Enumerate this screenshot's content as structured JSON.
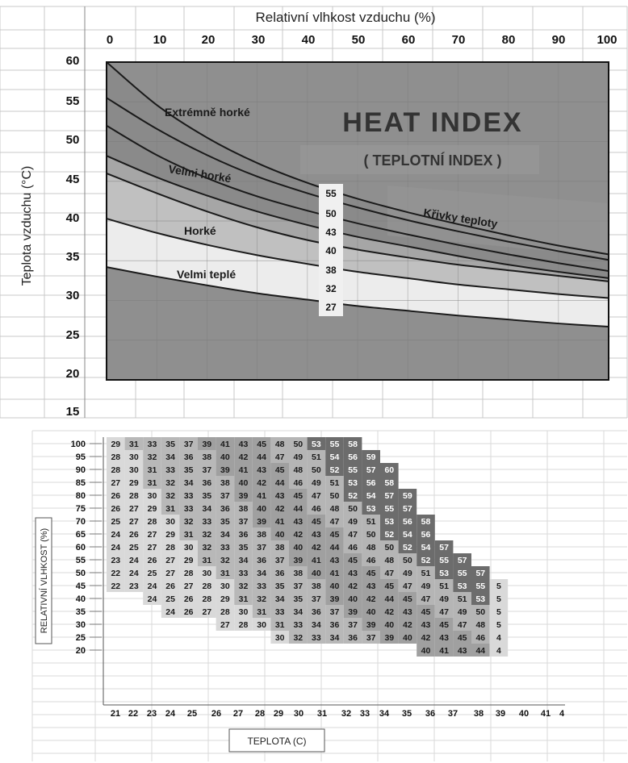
{
  "chart_data": [
    {
      "type": "line",
      "title": "HEAT INDEX",
      "subtitle": "( TEPLOTNÍ INDEX )",
      "xlabel": "Relativní vlhkost vzduchu (%)",
      "ylabel": "Teplota vzduchu (°C)",
      "x_ticks": [
        0,
        10,
        20,
        30,
        40,
        50,
        60,
        70,
        80,
        90,
        100
      ],
      "y_ticks": [
        60,
        55,
        50,
        45,
        40,
        35,
        30,
        25,
        20,
        15
      ],
      "xlim": [
        0,
        100
      ],
      "ylim": [
        15,
        60
      ],
      "curves_label": "Křivky teploty",
      "curve_value_labels": [
        "55",
        "50",
        "43",
        "40",
        "38",
        "32",
        "27"
      ],
      "x": [
        0,
        10,
        20,
        30,
        40,
        50,
        60,
        70,
        80,
        90,
        100
      ],
      "series": [
        {
          "name": "55",
          "values": [
            60,
            54.6,
            50.5,
            47.3,
            44.8,
            42.8,
            41.1,
            39.6,
            38.2,
            36.9,
            35.8
          ]
        },
        {
          "name": "50",
          "values": [
            55.5,
            51.6,
            48.3,
            45.6,
            43.5,
            41.7,
            40.1,
            38.7,
            37.4,
            36.2,
            35.1
          ]
        },
        {
          "name": "43",
          "values": [
            52,
            48.3,
            45.4,
            43.1,
            41.3,
            39.7,
            38.3,
            37,
            35.8,
            34.7,
            33.7
          ]
        },
        {
          "name": "40",
          "values": [
            48.2,
            45.5,
            43.2,
            41.2,
            39.5,
            38,
            36.8,
            35.6,
            34.5,
            33.6,
            32.8
          ]
        },
        {
          "name": "38",
          "values": [
            46,
            43.5,
            41.2,
            39.2,
            37.6,
            36.4,
            35.4,
            34.5,
            33.8,
            33.1,
            32.4
          ]
        },
        {
          "name": "32",
          "values": [
            40.3,
            38.5,
            37,
            35.7,
            34.6,
            33.6,
            32.8,
            32,
            31.4,
            30.8,
            30.3
          ]
        },
        {
          "name": "27",
          "values": [
            34.2,
            33,
            31.9,
            30.9,
            30.1,
            29.3,
            28.7,
            28.1,
            27.6,
            27.1,
            26.7
          ]
        }
      ],
      "zones": [
        {
          "name": "Extrémně horké",
          "color": "#8a8a8a"
        },
        {
          "name": "Velmi horké",
          "color": "#a6a6a6"
        },
        {
          "name": "Horké",
          "color": "#c0c0c0"
        },
        {
          "name": "Velmi teplé",
          "color": "#ececec"
        }
      ],
      "colors": {
        "outside": "#8f8f8f",
        "big_title": "#333333",
        "curve": "#1a1a1a"
      }
    },
    {
      "type": "heatmap",
      "xlabel": "TEPLOTA (C)",
      "ylabel": "RELATIVNÍ VLHKOST (%)",
      "x_ticks": [
        "21",
        "22",
        "23",
        "24",
        "25",
        "26",
        "27",
        "28",
        "29",
        "30",
        "31",
        "32",
        "33",
        "34",
        "35",
        "36",
        "37",
        "38",
        "39",
        "40",
        "41",
        "4"
      ],
      "y_ticks": [
        "100",
        "95",
        "90",
        "85",
        "80",
        "75",
        "70",
        "65",
        "60",
        "55",
        "50",
        "45",
        "40",
        "35",
        "30",
        "25",
        "20"
      ],
      "rows": [
        {
          "rh": "100",
          "start": 21,
          "values": [
            "29",
            "31",
            "33",
            "35",
            "37",
            "39",
            "41",
            "43",
            "45",
            "48",
            "50",
            "53",
            "55",
            "58"
          ]
        },
        {
          "rh": "95",
          "start": 21,
          "values": [
            "28",
            "30",
            "32",
            "34",
            "36",
            "38",
            "40",
            "42",
            "44",
            "47",
            "49",
            "51",
            "54",
            "56",
            "59"
          ]
        },
        {
          "rh": "90",
          "start": 21,
          "values": [
            "28",
            "30",
            "31",
            "33",
            "35",
            "37",
            "39",
            "41",
            "43",
            "45",
            "48",
            "50",
            "52",
            "55",
            "57",
            "60"
          ]
        },
        {
          "rh": "85",
          "start": 21,
          "values": [
            "27",
            "29",
            "31",
            "32",
            "34",
            "36",
            "38",
            "40",
            "42",
            "44",
            "46",
            "49",
            "51",
            "53",
            "56",
            "58"
          ]
        },
        {
          "rh": "80",
          "start": 21,
          "values": [
            "26",
            "28",
            "30",
            "32",
            "33",
            "35",
            "37",
            "39",
            "41",
            "43",
            "45",
            "47",
            "50",
            "52",
            "54",
            "57",
            "59"
          ]
        },
        {
          "rh": "75",
          "start": 21,
          "values": [
            "26",
            "27",
            "29",
            "31",
            "33",
            "34",
            "36",
            "38",
            "40",
            "42",
            "44",
            "46",
            "48",
            "50",
            "53",
            "55",
            "57"
          ]
        },
        {
          "rh": "70",
          "start": 21,
          "values": [
            "25",
            "27",
            "28",
            "30",
            "32",
            "33",
            "35",
            "37",
            "39",
            "41",
            "43",
            "45",
            "47",
            "49",
            "51",
            "53",
            "56",
            "58"
          ]
        },
        {
          "rh": "65",
          "start": 21,
          "values": [
            "24",
            "26",
            "27",
            "29",
            "31",
            "32",
            "34",
            "36",
            "38",
            "40",
            "42",
            "43",
            "45",
            "47",
            "50",
            "52",
            "54",
            "56"
          ]
        },
        {
          "rh": "60",
          "start": 21,
          "values": [
            "24",
            "25",
            "27",
            "28",
            "30",
            "32",
            "33",
            "35",
            "37",
            "38",
            "40",
            "42",
            "44",
            "46",
            "48",
            "50",
            "52",
            "54",
            "57"
          ]
        },
        {
          "rh": "55",
          "start": 21,
          "values": [
            "23",
            "24",
            "26",
            "27",
            "29",
            "31",
            "32",
            "34",
            "36",
            "37",
            "39",
            "41",
            "43",
            "45",
            "46",
            "48",
            "50",
            "52",
            "55",
            "57"
          ]
        },
        {
          "rh": "50",
          "start": 21,
          "values": [
            "22",
            "24",
            "25",
            "27",
            "28",
            "30",
            "31",
            "33",
            "34",
            "36",
            "38",
            "40",
            "41",
            "43",
            "45",
            "47",
            "49",
            "51",
            "53",
            "55",
            "57"
          ]
        },
        {
          "rh": "45",
          "start": 21,
          "values": [
            "22",
            "23",
            "24",
            "26",
            "27",
            "28",
            "30",
            "32",
            "33",
            "35",
            "37",
            "38",
            "40",
            "42",
            "43",
            "45",
            "47",
            "49",
            "51",
            "53",
            "55",
            "5"
          ]
        },
        {
          "rh": "40",
          "start": 23,
          "values": [
            "24",
            "25",
            "26",
            "28",
            "29",
            "31",
            "32",
            "34",
            "35",
            "37",
            "39",
            "40",
            "42",
            "44",
            "45",
            "47",
            "49",
            "51",
            "53",
            "5"
          ]
        },
        {
          "rh": "35",
          "start": 24,
          "values": [
            "24",
            "26",
            "27",
            "28",
            "30",
            "31",
            "33",
            "34",
            "36",
            "37",
            "39",
            "40",
            "42",
            "43",
            "45",
            "47",
            "49",
            "50",
            "5"
          ]
        },
        {
          "rh": "30",
          "start": 27,
          "values": [
            "27",
            "28",
            "30",
            "31",
            "33",
            "34",
            "36",
            "37",
            "39",
            "40",
            "42",
            "43",
            "45",
            "47",
            "48",
            "5"
          ]
        },
        {
          "rh": "25",
          "start": 30,
          "values": [
            "30",
            "32",
            "33",
            "34",
            "36",
            "37",
            "39",
            "40",
            "42",
            "43",
            "45",
            "46",
            "4"
          ]
        },
        {
          "rh": "20",
          "start": 38,
          "values": [
            "40",
            "41",
            "43",
            "44",
            "4"
          ]
        }
      ],
      "shade_thresholds": [
        31,
        39,
        46,
        52
      ],
      "shade_colors": [
        "#d9d9d9",
        "#b8b8b8",
        "#a0a0a0",
        "#b5b5b5",
        "#6c6c6c"
      ],
      "colors": {
        "value_light": "#ffffff",
        "value_dark": "#1a1a1a"
      }
    }
  ]
}
